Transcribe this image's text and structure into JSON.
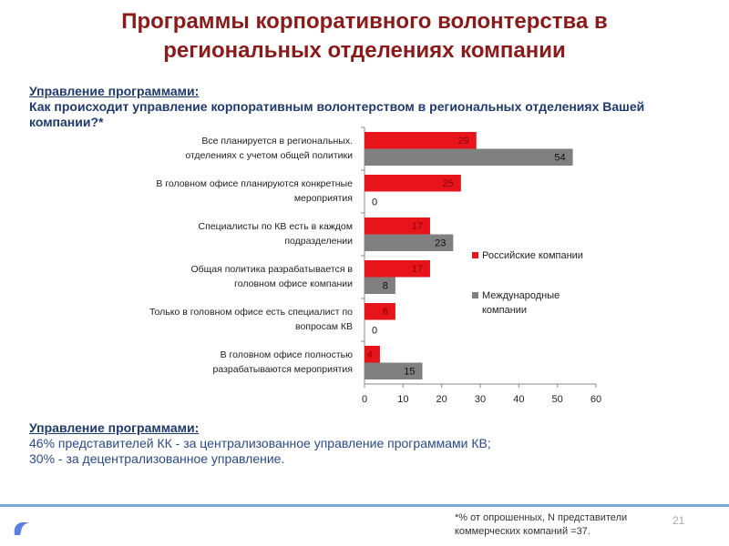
{
  "title": [
    "Программы корпоративного волонтерства в",
    "региональных отделениях компании"
  ],
  "question": {
    "heading": "Управление программами:",
    "text": "Как происходит управление корпоративным волонтерством в региональных отделениях Вашей компании?*"
  },
  "chart_data": {
    "type": "bar",
    "orientation": "horizontal",
    "categories": [
      [
        "Все планируется в региональных.",
        "отделениях с учетом общей политики"
      ],
      [
        "В головном офисе планируются конкретные",
        "мероприятия"
      ],
      [
        "Специалисты по КВ есть в каждом",
        "подразделении"
      ],
      [
        "Общая политика разрабатывается в",
        "головном офисе компании"
      ],
      [
        "Только в головном офисе есть специалист по",
        "вопросам КВ"
      ],
      [
        "В головном офисе полностью",
        "разрабатываются мероприятия"
      ]
    ],
    "series": [
      {
        "name": "Российские компании",
        "color": "#e8141b",
        "values": [
          29,
          25,
          17,
          17,
          8,
          4
        ]
      },
      {
        "name": "Международные компании",
        "color": "#808080",
        "values": [
          54,
          0,
          23,
          8,
          0,
          15
        ]
      }
    ],
    "xlim": [
      0,
      60
    ],
    "xticks": [
      0,
      10,
      20,
      30,
      40,
      50,
      60
    ],
    "grid": false,
    "legend": "right",
    "data_labels": true
  },
  "conclusion": {
    "heading": "Управление программами:",
    "lines": [
      "46% представителей КК - за централизованное управление программами КВ;",
      "30% - за децентрализованное управление."
    ]
  },
  "footnote": [
    "*% от опрошенных, N представители",
    "коммерческих компаний =37."
  ],
  "page_number": "21"
}
